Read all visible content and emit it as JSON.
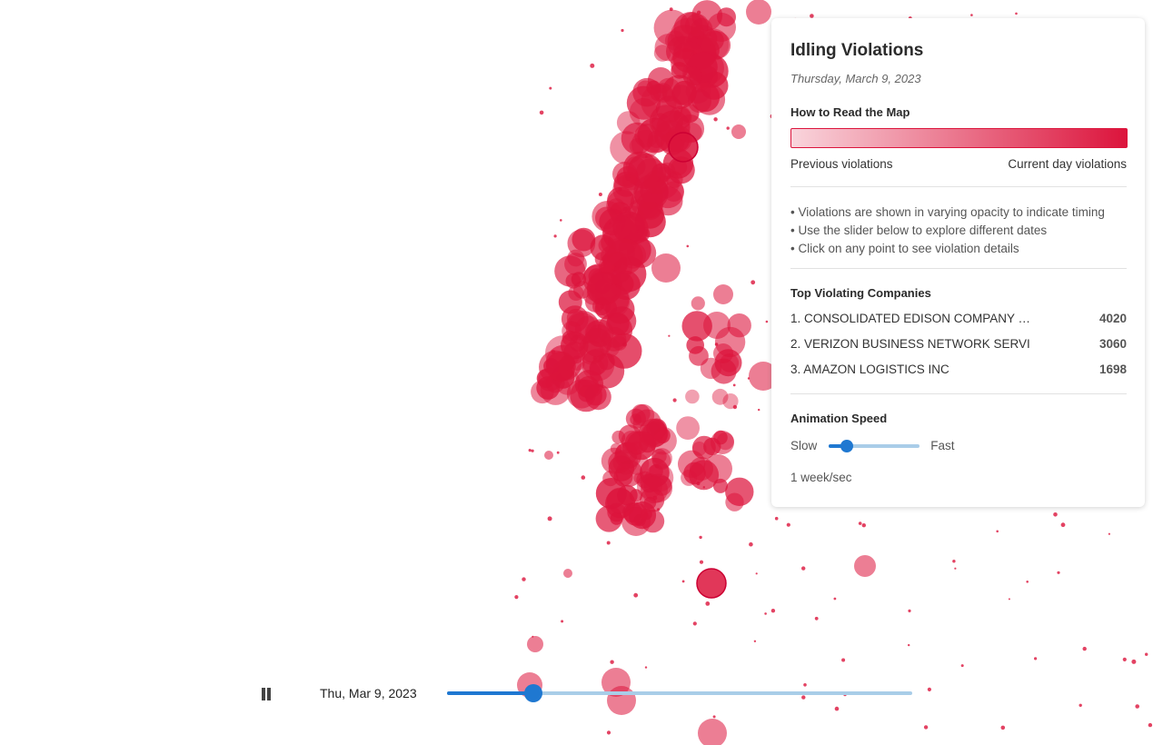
{
  "panel": {
    "title": "Idling Violations",
    "date": "Thursday, March 9, 2023",
    "legend": {
      "title": "How to Read the Map",
      "left_label": "Previous violations",
      "right_label": "Current day violations",
      "color": "#dc143c"
    },
    "notes": [
      "• Violations are shown in varying opacity to indicate timing",
      "• Use the slider below to explore different dates",
      "• Click on any point to see violation details"
    ],
    "top_companies_title": "Top Violating Companies",
    "companies": [
      {
        "name": "1. CONSOLIDATED EDISON COMPANY …",
        "count": "4020"
      },
      {
        "name": "2. VERIZON BUSINESS NETWORK SERVI",
        "count": "3060"
      },
      {
        "name": "3. AMAZON LOGISTICS INC",
        "count": "1698"
      }
    ],
    "speed": {
      "title": "Animation Speed",
      "slow_label": "Slow",
      "fast_label": "Fast",
      "level": 0.2,
      "value_text": "1 week/sec"
    }
  },
  "timeline": {
    "date_label": "Thu, Mar 9, 2023",
    "progress": 0.186,
    "state": "playing"
  },
  "map": {
    "marker_color": "#dc143c",
    "highlight_color": "#cc0033"
  }
}
